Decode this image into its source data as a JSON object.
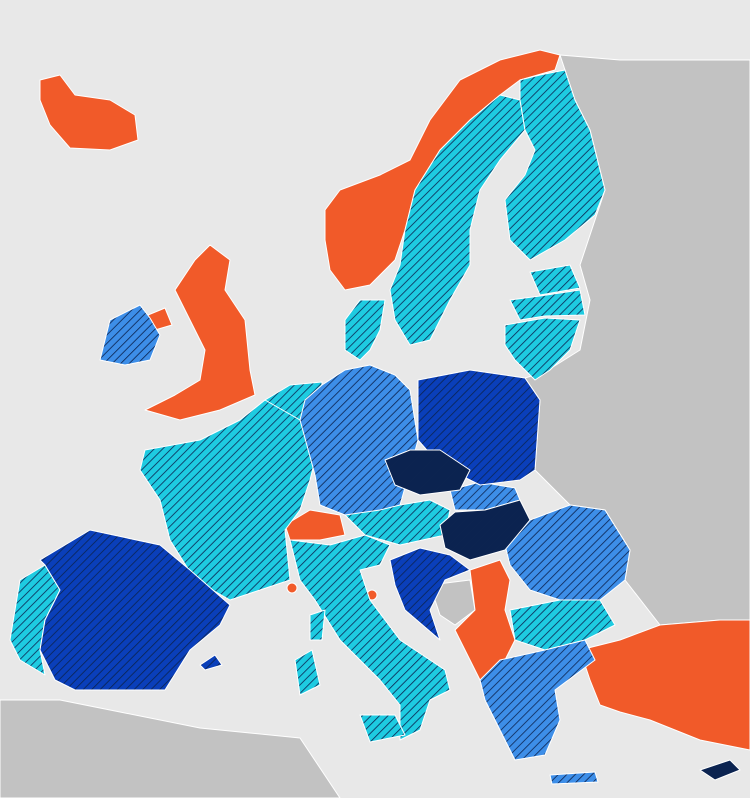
{
  "map": {
    "sea_color": "#e8e8e8",
    "non_member_land_color": "#c2c2c2",
    "border_color": "#ffffff",
    "categories": {
      "orange": {
        "color": "#f15a29",
        "hatched": false
      },
      "cyan": {
        "color": "#1ecbe1",
        "hatched": true
      },
      "mid_blue": {
        "color": "#3d8ee8",
        "hatched": true
      },
      "dark_blue": {
        "color": "#0a3fba",
        "hatched": true
      },
      "navy": {
        "color": "#0b2350",
        "hatched": true
      }
    },
    "hatch_color": "#0b2350"
  }
}
